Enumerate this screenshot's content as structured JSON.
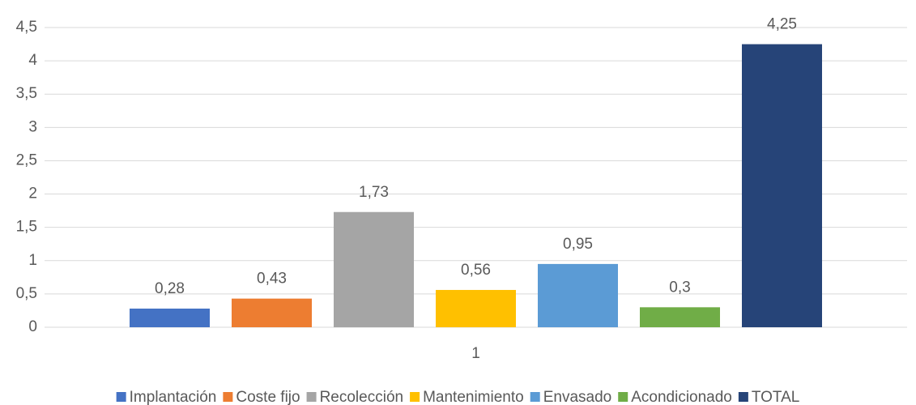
{
  "chart_data": {
    "type": "bar",
    "categories": [
      "1"
    ],
    "series": [
      {
        "name": "Implantación",
        "color": "#4472c4",
        "values": [
          0.28
        ],
        "value_labels": [
          "0,28"
        ]
      },
      {
        "name": "Coste fijo",
        "color": "#ed7d31",
        "values": [
          0.43
        ],
        "value_labels": [
          "0,43"
        ]
      },
      {
        "name": "Recolección",
        "color": "#a5a5a5",
        "values": [
          1.73
        ],
        "value_labels": [
          "1,73"
        ]
      },
      {
        "name": "Mantenimiento",
        "color": "#ffc000",
        "values": [
          0.56
        ],
        "value_labels": [
          "0,56"
        ]
      },
      {
        "name": "Envasado",
        "color": "#5b9bd5",
        "values": [
          0.95
        ],
        "value_labels": [
          "0,95"
        ]
      },
      {
        "name": "Acondicionado",
        "color": "#70ad47",
        "values": [
          0.3
        ],
        "value_labels": [
          "0,3"
        ]
      },
      {
        "name": "TOTAL",
        "color": "#264478",
        "values": [
          4.25
        ],
        "value_labels": [
          "4,25"
        ]
      }
    ],
    "ylim": [
      0,
      4.5
    ],
    "yticks": [
      0,
      {
        "value": 0.5,
        "label": "0,5"
      },
      1,
      {
        "value": 1.5,
        "label": "1,5"
      },
      2,
      {
        "value": 2.5,
        "label": "2,5"
      },
      3,
      {
        "value": 3.5,
        "label": "3,5"
      },
      4,
      {
        "value": 4.5,
        "label": "4,5"
      }
    ],
    "grid": true,
    "legend": "bottom"
  }
}
